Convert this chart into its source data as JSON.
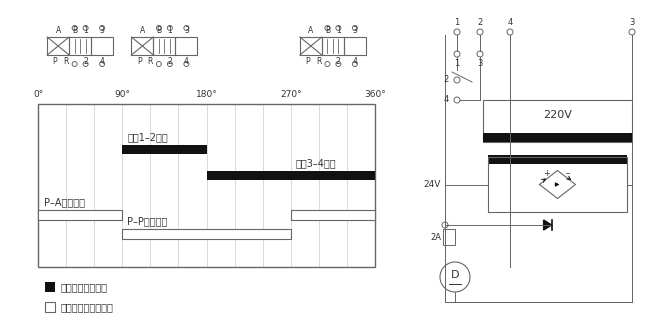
{
  "bg_color": "#ffffff",
  "lc": "#666666",
  "dc": "#111111",
  "tc": "#333333",
  "chart_l": 0.055,
  "chart_r": 0.575,
  "chart_t": 0.74,
  "chart_b": 0.215,
  "legend_solid": "限位开关触点闭合",
  "legend_hollow": "换向阀进出油口开启",
  "label_t12": "端字1–2触点",
  "label_t34": "端字3–4触点",
  "label_PA": "P–A自由通过",
  "label_PP": "P–P自由通过"
}
